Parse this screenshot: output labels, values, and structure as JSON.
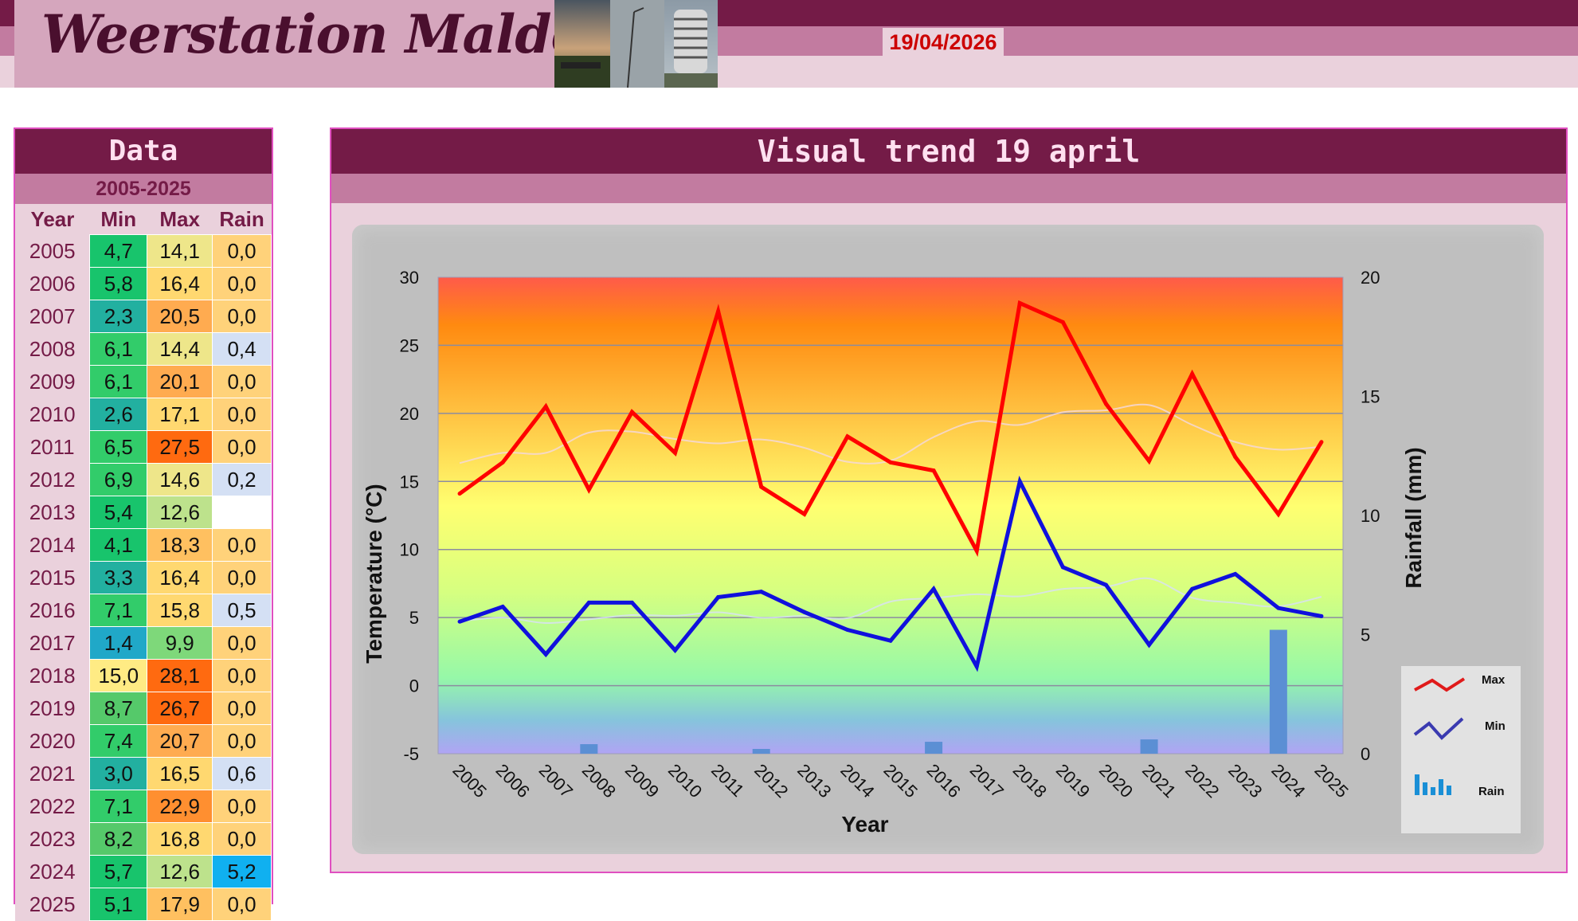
{
  "header": {
    "title": "Weerstation Malderen",
    "date": "19/04/2026"
  },
  "data_panel": {
    "title": "Data",
    "range": "2005-2025",
    "columns": [
      "Year",
      "Min",
      "Max",
      "Rain"
    ],
    "rows": [
      {
        "year": "2005",
        "min": "4,7",
        "max": "14,1",
        "rain": "0,0"
      },
      {
        "year": "2006",
        "min": "5,8",
        "max": "16,4",
        "rain": "0,0"
      },
      {
        "year": "2007",
        "min": "2,3",
        "max": "20,5",
        "rain": "0,0"
      },
      {
        "year": "2008",
        "min": "6,1",
        "max": "14,4",
        "rain": "0,4"
      },
      {
        "year": "2009",
        "min": "6,1",
        "max": "20,1",
        "rain": "0,0"
      },
      {
        "year": "2010",
        "min": "2,6",
        "max": "17,1",
        "rain": "0,0"
      },
      {
        "year": "2011",
        "min": "6,5",
        "max": "27,5",
        "rain": "0,0"
      },
      {
        "year": "2012",
        "min": "6,9",
        "max": "14,6",
        "rain": "0,2"
      },
      {
        "year": "2013",
        "min": "5,4",
        "max": "12,6",
        "rain": ""
      },
      {
        "year": "2014",
        "min": "4,1",
        "max": "18,3",
        "rain": "0,0"
      },
      {
        "year": "2015",
        "min": "3,3",
        "max": "16,4",
        "rain": "0,0"
      },
      {
        "year": "2016",
        "min": "7,1",
        "max": "15,8",
        "rain": "0,5"
      },
      {
        "year": "2017",
        "min": "1,4",
        "max": "9,9",
        "rain": "0,0"
      },
      {
        "year": "2018",
        "min": "15,0",
        "max": "28,1",
        "rain": "0,0"
      },
      {
        "year": "2019",
        "min": "8,7",
        "max": "26,7",
        "rain": "0,0"
      },
      {
        "year": "2020",
        "min": "7,4",
        "max": "20,7",
        "rain": "0,0"
      },
      {
        "year": "2021",
        "min": "3,0",
        "max": "16,5",
        "rain": "0,6"
      },
      {
        "year": "2022",
        "min": "7,1",
        "max": "22,9",
        "rain": "0,0"
      },
      {
        "year": "2023",
        "min": "8,2",
        "max": "16,8",
        "rain": "0,0"
      },
      {
        "year": "2024",
        "min": "5,7",
        "max": "12,6",
        "rain": "5,2"
      },
      {
        "year": "2025",
        "min": "5,1",
        "max": "17,9",
        "rain": "0,0"
      }
    ]
  },
  "chart_panel": {
    "title": "Visual trend 19 april"
  },
  "chart_data": {
    "type": "line",
    "x": [
      "2005",
      "2006",
      "2007",
      "2008",
      "2009",
      "2010",
      "2011",
      "2012",
      "2013",
      "2014",
      "2015",
      "2016",
      "2017",
      "2018",
      "2019",
      "2020",
      "2021",
      "2022",
      "2023",
      "2024",
      "2025"
    ],
    "series": [
      {
        "name": "Max",
        "axis": "left",
        "color": "#ff0000",
        "values": [
          14.1,
          16.4,
          20.5,
          14.4,
          20.1,
          17.1,
          27.5,
          14.6,
          12.6,
          18.3,
          16.4,
          15.8,
          9.9,
          28.1,
          26.7,
          20.7,
          16.5,
          22.9,
          16.8,
          12.6,
          17.9
        ]
      },
      {
        "name": "Min",
        "axis": "left",
        "color": "#1010dd",
        "values": [
          4.7,
          5.8,
          2.3,
          6.1,
          6.1,
          2.6,
          6.5,
          6.9,
          5.4,
          4.1,
          3.3,
          7.1,
          1.4,
          15.0,
          8.7,
          7.4,
          3.0,
          7.1,
          8.2,
          5.7,
          5.1
        ]
      },
      {
        "name": "Rain",
        "axis": "right",
        "type": "bar",
        "color": "#5b8fd4",
        "values": [
          0.0,
          0.0,
          0.0,
          0.4,
          0.0,
          0.0,
          0.0,
          0.2,
          null,
          0.0,
          0.0,
          0.5,
          0.0,
          0.0,
          0.0,
          0.0,
          0.6,
          0.0,
          0.0,
          5.2,
          0.0
        ]
      }
    ],
    "xlabel": "Year",
    "ylabel": "Temperature (°C)",
    "y2label": "Rainfall (mm)",
    "ylim": [
      -5,
      30
    ],
    "y2lim": [
      0,
      20
    ],
    "yticks": [
      -5,
      0,
      5,
      10,
      15,
      20,
      25,
      30
    ],
    "y2ticks": [
      0,
      5,
      10,
      15,
      20
    ],
    "grid": true,
    "trendlines": true,
    "legend_position": "bottom-right",
    "background": "rainbow-gradient"
  }
}
